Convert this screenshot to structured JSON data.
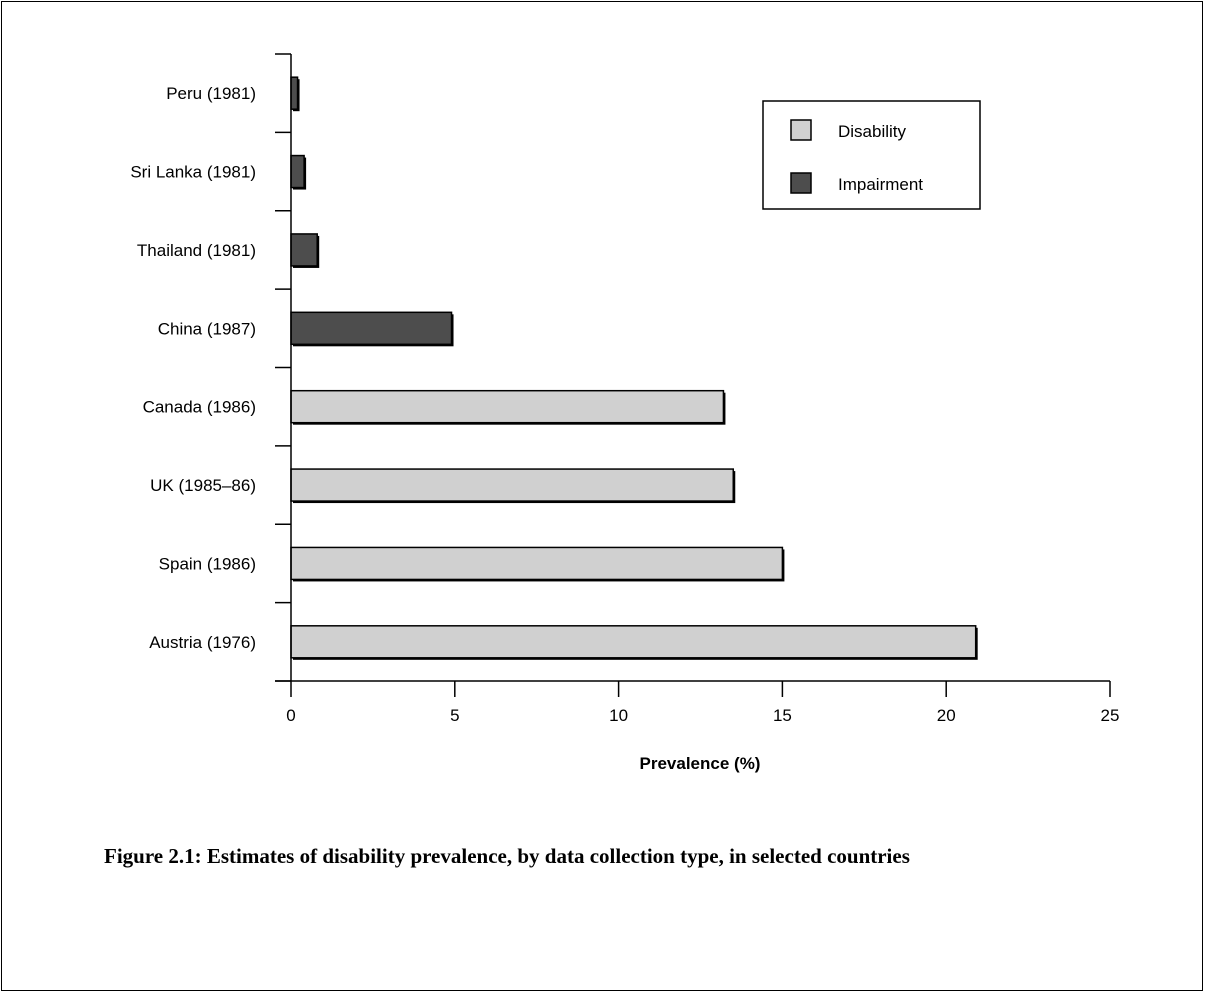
{
  "caption": "Figure 2.1: Estimates of disability prevalence, by data collection type, in selected countries",
  "chart_data": {
    "type": "bar",
    "orientation": "horizontal",
    "categories": [
      "Peru (1981)",
      "Sri Lanka (1981)",
      "Thailand (1981)",
      "China (1987)",
      "Canada (1986)",
      "UK (1985–86)",
      "Spain (1986)",
      "Austria (1976)"
    ],
    "values": [
      0.2,
      0.4,
      0.8,
      4.9,
      13.2,
      13.5,
      15.0,
      20.9
    ],
    "bar_types": [
      "Impairment",
      "Impairment",
      "Impairment",
      "Impairment",
      "Disability",
      "Disability",
      "Disability",
      "Disability"
    ],
    "legend": [
      {
        "name": "Disability",
        "color": "#d0d0d0"
      },
      {
        "name": "Impairment",
        "color": "#4d4d4d"
      }
    ],
    "legend_position": "top-right",
    "xlabel": "Prevalence (%)",
    "ylabel": "",
    "xlim": [
      0,
      25
    ],
    "xticks": [
      0,
      5,
      10,
      15,
      20,
      25
    ],
    "grid": false
  }
}
